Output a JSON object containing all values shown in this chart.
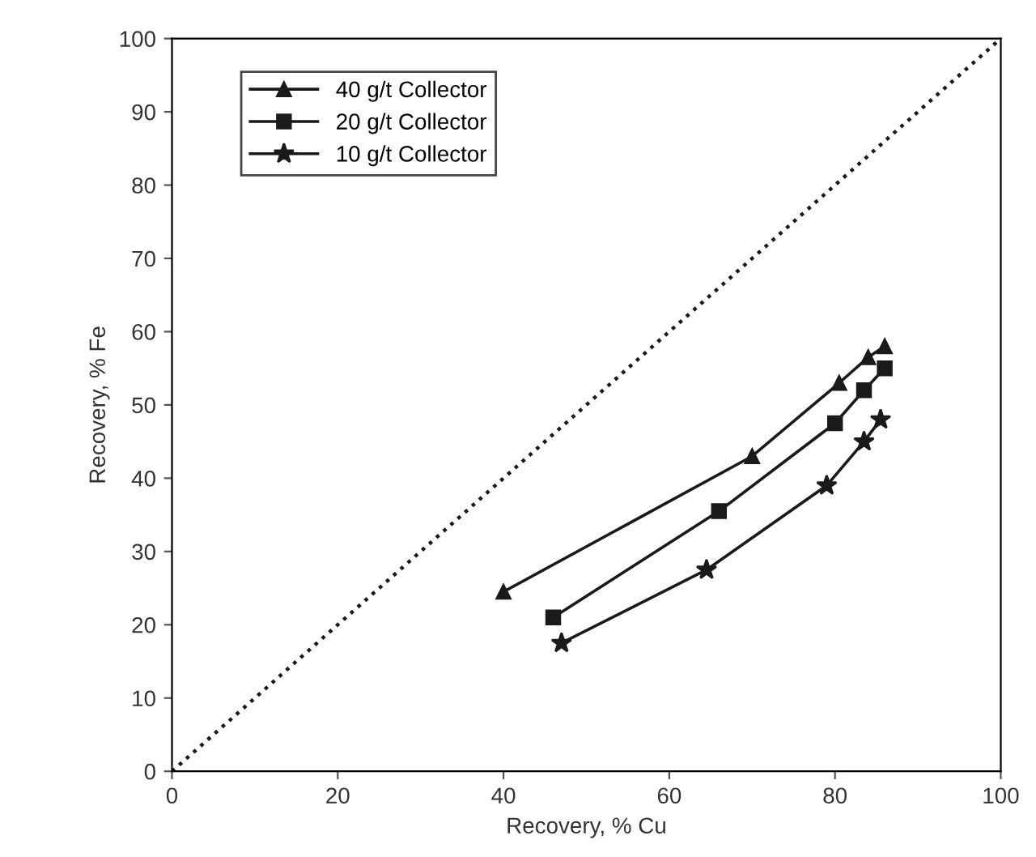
{
  "chart_data": {
    "type": "line",
    "xlabel": "Recovery, % Cu",
    "ylabel": "Recovery, % Fe",
    "xlim": [
      0,
      100
    ],
    "ylim": [
      0,
      100
    ],
    "xticks": [
      0,
      20,
      40,
      60,
      80,
      100
    ],
    "yticks": [
      0,
      10,
      20,
      30,
      40,
      50,
      60,
      70,
      80,
      90,
      100
    ],
    "grid": false,
    "legend": "top left",
    "series": [
      {
        "name": "40 g/t Collector",
        "color": "#1a1a1a",
        "marker": "triangle",
        "line_style": "solid",
        "x": [
          40,
          70,
          80.5,
          84,
          86
        ],
        "values": [
          24.5,
          43,
          53,
          56.5,
          58
        ]
      },
      {
        "name": "20 g/t Collector",
        "color": "#1a1a1a",
        "marker": "square",
        "line_style": "solid",
        "x": [
          46,
          66,
          80,
          83.5,
          86
        ],
        "values": [
          21,
          35.5,
          47.5,
          52,
          55
        ]
      },
      {
        "name": "10 g/t Collector",
        "color": "#1a1a1a",
        "marker": "star",
        "line_style": "solid",
        "x": [
          47,
          64.5,
          79,
          83.5,
          85.5
        ],
        "values": [
          17.5,
          27.5,
          39,
          45,
          48
        ]
      },
      {
        "color": "#1a1a1a",
        "marker": "none",
        "line_style": "dotted",
        "x": [
          0,
          100
        ],
        "values": [
          0,
          100
        ]
      }
    ]
  }
}
